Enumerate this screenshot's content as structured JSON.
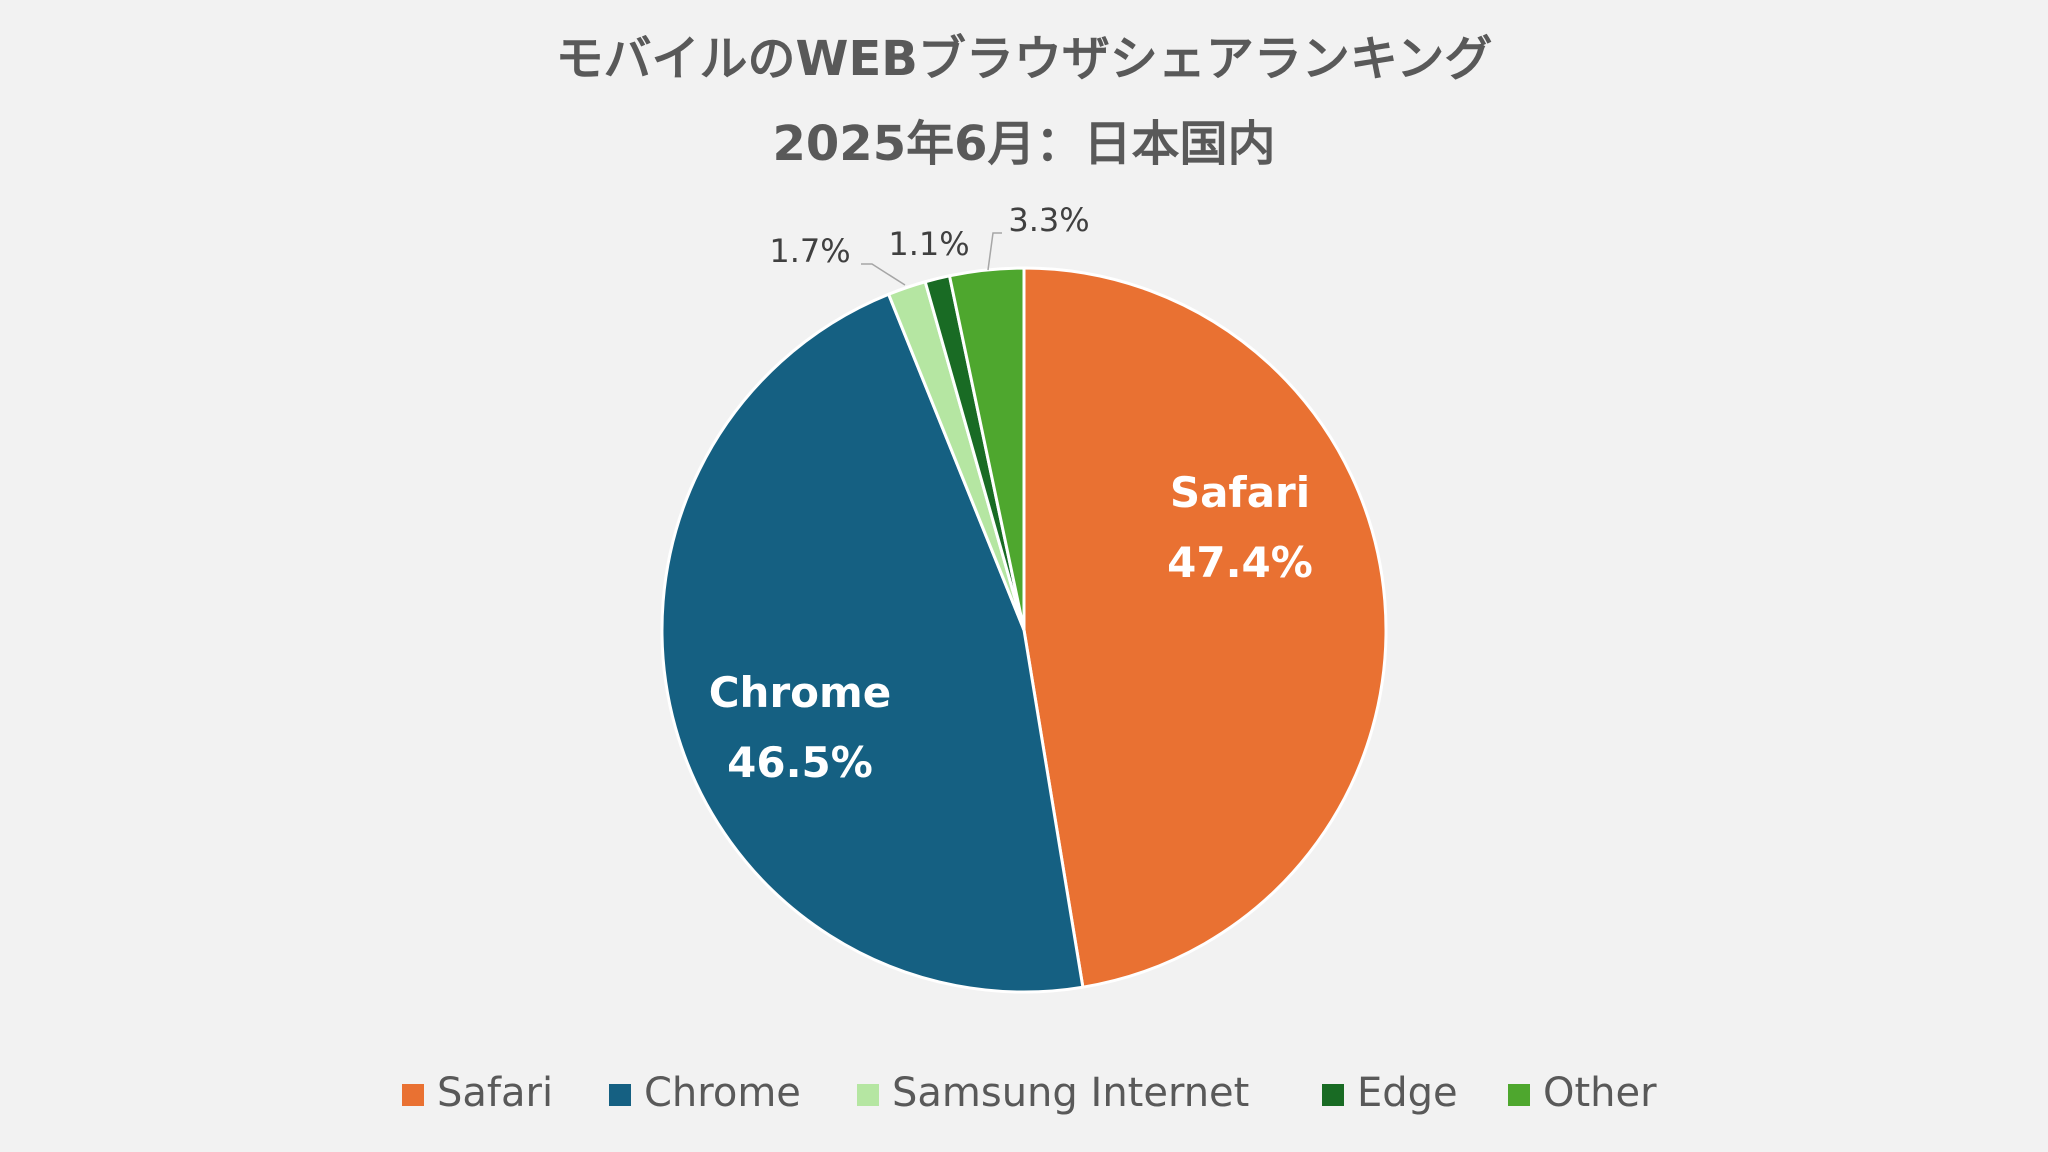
{
  "chart_data": {
    "type": "pie",
    "title": "モバイルのWEBブラウザシェアランキング",
    "subtitle": "2025年6月：日本国内",
    "categories": [
      "Safari",
      "Chrome",
      "Samsung Internet",
      "Edge",
      "Other"
    ],
    "values": [
      47.4,
      46.5,
      1.7,
      1.1,
      3.3
    ],
    "unit": "%",
    "data_labels": [
      "47.4%",
      "46.5%",
      "1.7%",
      "1.1%",
      "3.3%"
    ],
    "colors": [
      "#E97132",
      "#156082",
      "#B5E6A2",
      "#196B24",
      "#4EA72E"
    ],
    "legend_position": "bottom",
    "start_angle_deg": 0,
    "direction": "clockwise"
  }
}
